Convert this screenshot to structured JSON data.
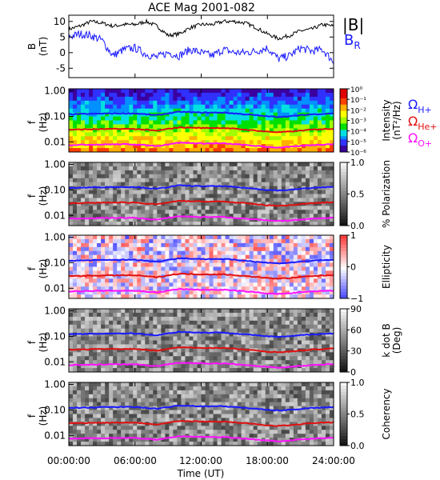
{
  "title": "ACE Mag 2001-082",
  "colors": {
    "total": "#000000",
    "radial": "#1a1aff",
    "hplus": "#1a1aff",
    "heplus": "#e01010",
    "oplus": "#ff10ff"
  },
  "chart_data": [
    {
      "type": "line",
      "title": "ACE Mag 2001-082",
      "ylabel": "B",
      "yunit": "(nT)",
      "ylim": [
        -8,
        12
      ],
      "yticks": [
        -5,
        0,
        5,
        10
      ],
      "xlim": [
        0,
        24
      ],
      "series": [
        {
          "name": "|B|",
          "color": "#000000",
          "x": [
            0,
            1,
            2,
            3,
            4,
            5,
            6,
            7,
            8,
            9,
            10,
            11,
            12,
            13,
            14,
            15,
            16,
            17,
            18,
            19,
            20,
            21,
            22,
            23,
            24
          ],
          "y": [
            7.5,
            8.5,
            10,
            9.5,
            8.5,
            9,
            9,
            10,
            8.5,
            5.5,
            6,
            8,
            9,
            9,
            10,
            10,
            9.5,
            8,
            6,
            4.5,
            5.5,
            7,
            7.5,
            9,
            8.5
          ]
        },
        {
          "name": "B",
          "subscript": "R",
          "color": "#1a1aff",
          "x": [
            0,
            1,
            2,
            3,
            4,
            5,
            6,
            7,
            8,
            9,
            10,
            11,
            12,
            13,
            14,
            15,
            16,
            17,
            18,
            19,
            20,
            21,
            22,
            23,
            24
          ],
          "y": [
            5,
            6,
            5.5,
            4,
            -1,
            1,
            1.5,
            -0.5,
            -1.5,
            0,
            -1,
            1,
            0,
            -1,
            1,
            0,
            0,
            0.5,
            1.5,
            -2,
            -1,
            1.5,
            0.5,
            1,
            -3
          ]
        }
      ]
    },
    {
      "type": "heatmap",
      "ylabel": "f",
      "yunit": "(Hz)",
      "yscale": "log",
      "ylim": [
        0.004,
        1.2
      ],
      "yticks": [
        "1.00",
        "0.10",
        "0.01"
      ],
      "colorbar": {
        "label": [
          "Intensity",
          "(nT²/Hz)"
        ],
        "ticks": [
          "10⁰",
          "10⁻¹",
          "10⁻²",
          "10⁻³",
          "10⁻⁴",
          "10⁻⁵",
          "10⁻⁶"
        ],
        "scale": "rainbow"
      },
      "series": [
        {
          "name": "Ω",
          "subscript": "H+",
          "color": "#1a1aff",
          "x": [
            0,
            2,
            4,
            6,
            8,
            10,
            12,
            14,
            16,
            18,
            19,
            20,
            22,
            24
          ],
          "y": [
            0.12,
            0.125,
            0.13,
            0.13,
            0.11,
            0.15,
            0.14,
            0.14,
            0.12,
            0.1,
            0.095,
            0.1,
            0.12,
            0.13
          ]
        },
        {
          "name": "Ω",
          "subscript": "He+",
          "color": "#e01010",
          "x": [
            0,
            2,
            4,
            6,
            8,
            10,
            12,
            14,
            16,
            18,
            19,
            20,
            22,
            24
          ],
          "y": [
            0.03,
            0.031,
            0.032,
            0.032,
            0.027,
            0.037,
            0.035,
            0.035,
            0.03,
            0.025,
            0.024,
            0.025,
            0.03,
            0.033
          ]
        },
        {
          "name": "Ω",
          "subscript": "O+",
          "color": "#ff10ff",
          "x": [
            0,
            2,
            4,
            6,
            8,
            10,
            12,
            14,
            16,
            18,
            19,
            20,
            22,
            24
          ],
          "y": [
            0.0075,
            0.0078,
            0.008,
            0.008,
            0.0068,
            0.0093,
            0.0087,
            0.0087,
            0.0075,
            0.0063,
            0.006,
            0.0063,
            0.0075,
            0.0082
          ]
        }
      ]
    },
    {
      "type": "heatmap",
      "ylabel": "f",
      "yunit": "(Hz)",
      "yscale": "log",
      "ylim": [
        0.004,
        1.2
      ],
      "yticks": [
        "1.00",
        "0.10",
        "0.01"
      ],
      "colorbar": {
        "label": [
          "% Polarization"
        ],
        "ticks": [
          "1.0",
          "0.5",
          "0.0"
        ],
        "scale": "gray"
      },
      "series": [
        {
          "color": "#1a1aff",
          "x": [
            0,
            2,
            4,
            6,
            8,
            10,
            12,
            14,
            16,
            18,
            19,
            20,
            22,
            24
          ],
          "y": [
            0.12,
            0.125,
            0.13,
            0.13,
            0.11,
            0.15,
            0.14,
            0.14,
            0.12,
            0.1,
            0.095,
            0.1,
            0.12,
            0.13
          ]
        },
        {
          "color": "#e01010",
          "x": [
            0,
            2,
            4,
            6,
            8,
            10,
            12,
            14,
            16,
            18,
            19,
            20,
            22,
            24
          ],
          "y": [
            0.03,
            0.031,
            0.032,
            0.032,
            0.027,
            0.037,
            0.035,
            0.035,
            0.03,
            0.025,
            0.024,
            0.025,
            0.03,
            0.033
          ]
        },
        {
          "color": "#ff10ff",
          "x": [
            0,
            2,
            4,
            6,
            8,
            10,
            12,
            14,
            16,
            18,
            19,
            20,
            22,
            24
          ],
          "y": [
            0.0075,
            0.0078,
            0.008,
            0.008,
            0.0068,
            0.0093,
            0.0087,
            0.0087,
            0.0075,
            0.0063,
            0.006,
            0.0063,
            0.0075,
            0.0082
          ]
        }
      ]
    },
    {
      "type": "heatmap",
      "ylabel": "f",
      "yunit": "(Hz)",
      "yscale": "log",
      "ylim": [
        0.004,
        1.2
      ],
      "yticks": [
        "1.00",
        "0.10",
        "0.01"
      ],
      "colorbar": {
        "label": [
          "Ellipticity"
        ],
        "ticks": [
          "1",
          "0",
          "−1"
        ],
        "scale": "bwr"
      },
      "series": [
        {
          "color": "#1a1aff",
          "x": [
            0,
            2,
            4,
            6,
            8,
            10,
            12,
            14,
            16,
            18,
            19,
            20,
            22,
            24
          ],
          "y": [
            0.12,
            0.125,
            0.13,
            0.13,
            0.11,
            0.15,
            0.14,
            0.14,
            0.12,
            0.1,
            0.095,
            0.1,
            0.12,
            0.13
          ]
        },
        {
          "color": "#e01010",
          "x": [
            0,
            2,
            4,
            6,
            8,
            10,
            12,
            14,
            16,
            18,
            19,
            20,
            22,
            24
          ],
          "y": [
            0.03,
            0.031,
            0.032,
            0.032,
            0.027,
            0.037,
            0.035,
            0.035,
            0.03,
            0.025,
            0.024,
            0.025,
            0.03,
            0.033
          ]
        },
        {
          "color": "#ff10ff",
          "x": [
            0,
            2,
            4,
            6,
            8,
            10,
            12,
            14,
            16,
            18,
            19,
            20,
            22,
            24
          ],
          "y": [
            0.0075,
            0.0078,
            0.008,
            0.008,
            0.0068,
            0.0093,
            0.0087,
            0.0087,
            0.0075,
            0.0063,
            0.006,
            0.0063,
            0.0075,
            0.0082
          ]
        }
      ]
    },
    {
      "type": "heatmap",
      "ylabel": "f",
      "yunit": "(Hz)",
      "yscale": "log",
      "ylim": [
        0.004,
        1.2
      ],
      "yticks": [
        "1.00",
        "0.10",
        "0.01"
      ],
      "colorbar": {
        "label": [
          "k dot B",
          "(Deg)"
        ],
        "ticks": [
          "90",
          "60",
          "30",
          "0"
        ],
        "scale": "gray"
      },
      "series": [
        {
          "color": "#1a1aff",
          "x": [
            0,
            2,
            4,
            6,
            8,
            10,
            12,
            14,
            16,
            18,
            19,
            20,
            22,
            24
          ],
          "y": [
            0.12,
            0.125,
            0.13,
            0.13,
            0.11,
            0.15,
            0.14,
            0.14,
            0.12,
            0.1,
            0.095,
            0.1,
            0.12,
            0.13
          ]
        },
        {
          "color": "#e01010",
          "x": [
            0,
            2,
            4,
            6,
            8,
            10,
            12,
            14,
            16,
            18,
            19,
            20,
            22,
            24
          ],
          "y": [
            0.03,
            0.031,
            0.032,
            0.032,
            0.027,
            0.037,
            0.035,
            0.035,
            0.03,
            0.025,
            0.024,
            0.025,
            0.03,
            0.033
          ]
        },
        {
          "color": "#ff10ff",
          "x": [
            0,
            2,
            4,
            6,
            8,
            10,
            12,
            14,
            16,
            18,
            19,
            20,
            22,
            24
          ],
          "y": [
            0.0075,
            0.0078,
            0.008,
            0.008,
            0.0068,
            0.0093,
            0.0087,
            0.0087,
            0.0075,
            0.0063,
            0.006,
            0.0063,
            0.0075,
            0.0082
          ]
        }
      ]
    },
    {
      "type": "heatmap",
      "ylabel": "f",
      "yunit": "(Hz)",
      "yscale": "log",
      "ylim": [
        0.004,
        1.2
      ],
      "yticks": [
        "1.00",
        "0.10",
        "0.01"
      ],
      "colorbar": {
        "label": [
          "Coherency"
        ],
        "ticks": [
          "1.0",
          "0.5",
          "0.0"
        ],
        "scale": "gray"
      },
      "series": [
        {
          "color": "#1a1aff",
          "x": [
            0,
            2,
            4,
            6,
            8,
            10,
            12,
            14,
            16,
            18,
            19,
            20,
            22,
            24
          ],
          "y": [
            0.12,
            0.125,
            0.13,
            0.13,
            0.11,
            0.15,
            0.14,
            0.14,
            0.12,
            0.1,
            0.095,
            0.1,
            0.12,
            0.13
          ]
        },
        {
          "color": "#e01010",
          "x": [
            0,
            2,
            4,
            6,
            8,
            10,
            12,
            14,
            16,
            18,
            19,
            20,
            22,
            24
          ],
          "y": [
            0.03,
            0.031,
            0.032,
            0.032,
            0.027,
            0.037,
            0.035,
            0.035,
            0.03,
            0.025,
            0.024,
            0.025,
            0.03,
            0.033
          ]
        },
        {
          "color": "#ff10ff",
          "x": [
            0,
            2,
            4,
            6,
            8,
            10,
            12,
            14,
            16,
            18,
            19,
            20,
            22,
            24
          ],
          "y": [
            0.0075,
            0.0078,
            0.008,
            0.008,
            0.0068,
            0.0093,
            0.0087,
            0.0087,
            0.0075,
            0.0063,
            0.006,
            0.0063,
            0.0075,
            0.0082
          ]
        }
      ]
    }
  ],
  "xaxis": {
    "label": "Time (UT)",
    "ticks": [
      "00:00:00",
      "06:00:00",
      "12:00:00",
      "18:00:00",
      "24:00:00"
    ],
    "tick_hours": [
      0,
      6,
      12,
      18,
      24
    ]
  }
}
